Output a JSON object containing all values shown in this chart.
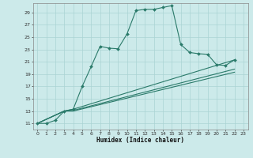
{
  "xlabel": "Humidex (Indice chaleur)",
  "bg_color": "#cceaea",
  "grid_color": "#aad4d4",
  "line_color": "#2a7a6a",
  "xlim": [
    -0.5,
    23.5
  ],
  "ylim": [
    10,
    30.5
  ],
  "yticks": [
    11,
    13,
    15,
    17,
    19,
    21,
    23,
    25,
    27,
    29
  ],
  "xticks": [
    0,
    1,
    2,
    3,
    4,
    5,
    6,
    7,
    8,
    9,
    10,
    11,
    12,
    13,
    14,
    15,
    16,
    17,
    18,
    19,
    20,
    21,
    22,
    23
  ],
  "series": [
    [
      0,
      11
    ],
    [
      1,
      11
    ],
    [
      2,
      11.5
    ],
    [
      3,
      13
    ],
    [
      4,
      13.3
    ],
    [
      5,
      17
    ],
    [
      6,
      20.2
    ],
    [
      7,
      23.5
    ],
    [
      8,
      23.2
    ],
    [
      9,
      23.1
    ],
    [
      10,
      25.5
    ],
    [
      11,
      29.3
    ],
    [
      12,
      29.5
    ],
    [
      13,
      29.5
    ],
    [
      14,
      29.8
    ],
    [
      15,
      30.1
    ],
    [
      16,
      23.8
    ],
    [
      17,
      22.5
    ],
    [
      18,
      22.3
    ],
    [
      19,
      22.2
    ],
    [
      20,
      20.5
    ],
    [
      21,
      20.4
    ],
    [
      22,
      21.3
    ]
  ],
  "line2": [
    [
      0,
      11
    ],
    [
      3,
      13
    ],
    [
      4,
      13.3
    ],
    [
      22,
      21.3
    ]
  ],
  "line3": [
    [
      0,
      11
    ],
    [
      3,
      13
    ],
    [
      4,
      13.1
    ],
    [
      22,
      19.8
    ]
  ],
  "line4": [
    [
      0,
      11
    ],
    [
      3,
      13
    ],
    [
      4,
      13.0
    ],
    [
      22,
      19.3
    ]
  ]
}
